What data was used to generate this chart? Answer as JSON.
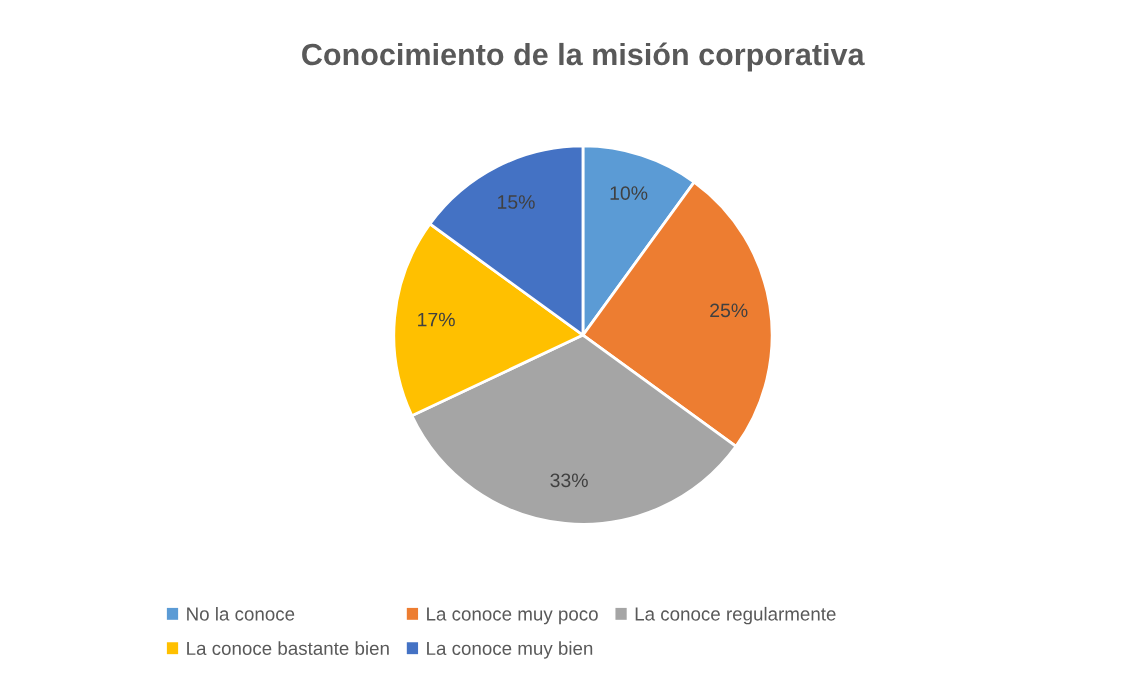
{
  "chart_data": {
    "type": "pie",
    "title": "Conocimiento de la misión corporativa",
    "categories": [
      "No la conoce",
      "La conoce muy poco",
      "La conoce regularmente",
      "La conoce bastante bien",
      "La conoce muy bien"
    ],
    "values": [
      10,
      25,
      33,
      17,
      15
    ],
    "colors": [
      "#5b9bd5",
      "#ed7d31",
      "#a5a5a5",
      "#ffc000",
      "#4472c4"
    ],
    "value_labels": [
      "10%",
      "25%",
      "33%",
      "17%",
      "15%"
    ],
    "legend": "bottom"
  }
}
